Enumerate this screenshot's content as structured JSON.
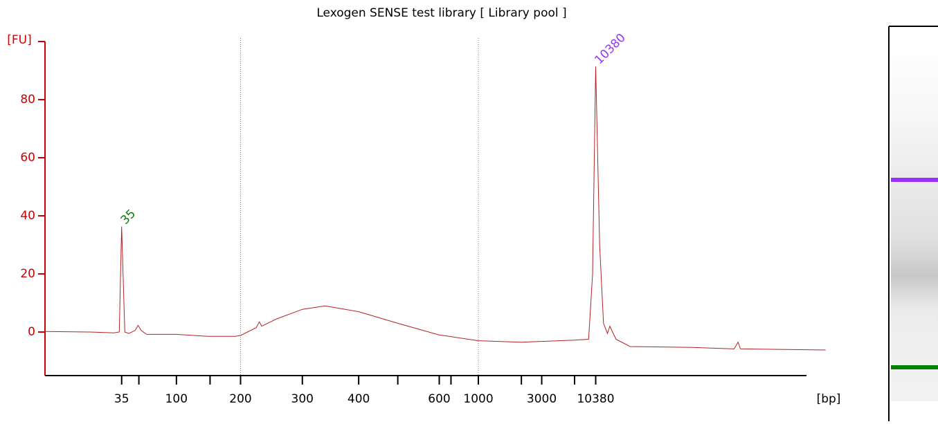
{
  "chart_data": {
    "type": "line",
    "title": "Lexogen SENSE test library  [ Library pool ]",
    "y_label": "[FU]",
    "x_label": "[bp]",
    "axis_color": "#cc0000",
    "xlim": [
      0,
      100
    ],
    "ylim": [
      -15,
      100
    ],
    "yticks": [
      0,
      20,
      40,
      60,
      80
    ],
    "xticks": [
      {
        "value": 9.8,
        "label": "35"
      },
      {
        "value": 12.0,
        "label": null
      },
      {
        "value": 16.8,
        "label": "100"
      },
      {
        "value": 21.1,
        "label": null
      },
      {
        "value": 25.0,
        "label": "200"
      },
      {
        "value": 32.9,
        "label": "300"
      },
      {
        "value": 40.1,
        "label": "400"
      },
      {
        "value": 45.1,
        "label": null
      },
      {
        "value": 50.4,
        "label": "600"
      },
      {
        "value": 51.9,
        "label": null
      },
      {
        "value": 55.4,
        "label": "1000"
      },
      {
        "value": 60.9,
        "label": null
      },
      {
        "value": 63.5,
        "label": "3000"
      },
      {
        "value": 67.7,
        "label": null
      },
      {
        "value": 70.4,
        "label": "10380"
      }
    ],
    "marker_lines_x": [
      25.0,
      55.4
    ],
    "series": [
      {
        "color": "#b22222",
        "x": [
          0.0,
          5.8,
          8.8,
          9.5,
          9.8,
          10.2,
          10.7,
          11.5,
          11.9,
          12.3,
          13.0,
          16.8,
          20.8,
          24.3,
          25.0,
          27.0,
          27.4,
          27.7,
          29.6,
          32.9,
          35.8,
          40.1,
          45.1,
          50.4,
          55.4,
          60.9,
          67.7,
          69.5,
          70.0,
          70.4,
          70.9,
          71.4,
          71.9,
          72.2,
          73.0,
          74.8,
          82.7,
          88.1,
          88.6,
          88.9,
          99.8
        ],
        "values": [
          0.2,
          0,
          -0.3,
          0,
          36.3,
          0,
          -0.5,
          0.5,
          2.3,
          0.5,
          -0.8,
          -0.8,
          -1.5,
          -1.5,
          -1.2,
          1.5,
          3.5,
          2,
          4.5,
          7.8,
          9,
          7,
          3,
          -1,
          -3,
          -3.5,
          -2.8,
          -2.5,
          20,
          91.4,
          30,
          3,
          -0.5,
          2,
          -2.5,
          -5,
          -5.3,
          -5.8,
          -3.5,
          -5.8,
          -6.2
        ]
      }
    ],
    "peaks": [
      {
        "x": 9.8,
        "y": 36.3,
        "label": "35",
        "color": "#008000"
      },
      {
        "x": 70.4,
        "y": 91.4,
        "label": "10380",
        "color": "#9b30ff"
      }
    ]
  }
}
